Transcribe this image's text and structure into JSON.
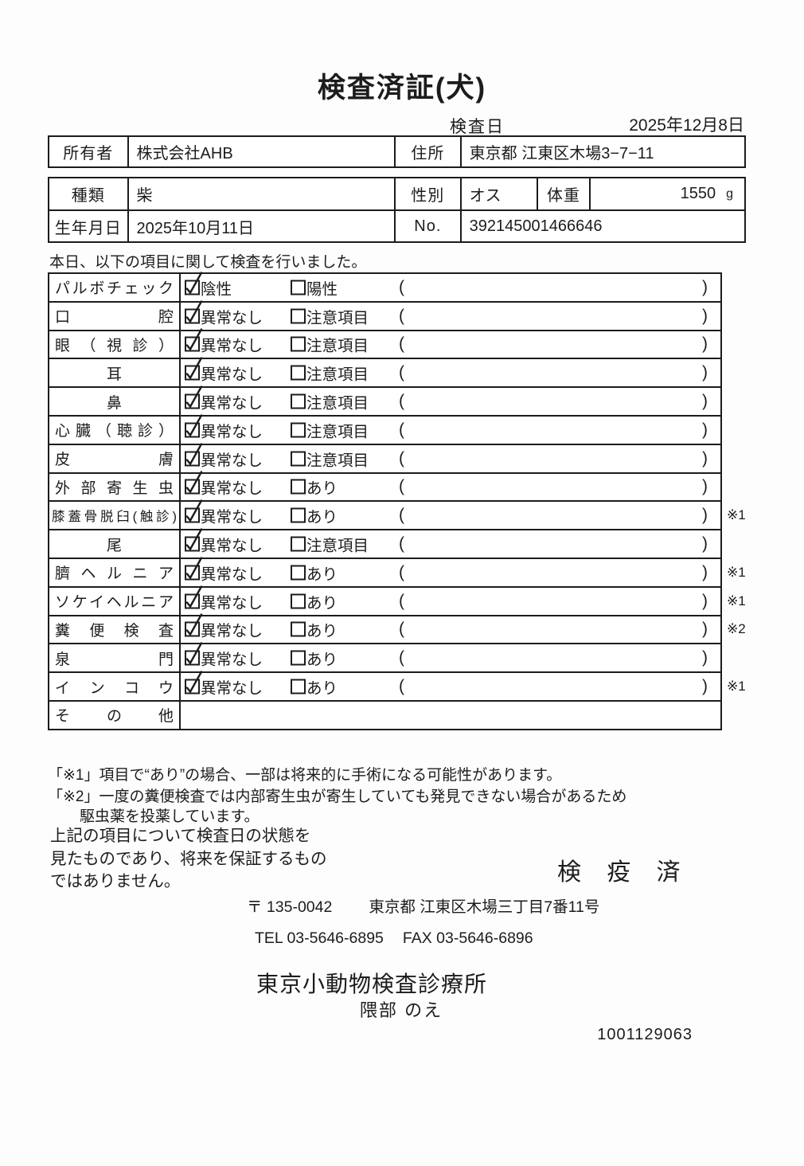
{
  "title": "検査済証(犬)",
  "exam_date": {
    "label": "検査日",
    "value": "2025年12月8日"
  },
  "owner": {
    "label": "所有者",
    "value": "株式会社AHB",
    "address_label": "住所",
    "address": "東京都 江東区木場3−7−11"
  },
  "animal": {
    "breed_label": "種類",
    "breed": "柴",
    "sex_label": "性別",
    "sex": "オス",
    "weight_label": "体重",
    "weight": "1550",
    "weight_unit": "g",
    "birth_label": "生年月日",
    "birth": "2025年10月11日",
    "no_label": "No.",
    "no": "392145001466646"
  },
  "intro": "本日、以下の項目に関して検査を行いました。",
  "parens": {
    "open": "(",
    "close": ")"
  },
  "rows": [
    {
      "label": "パルボチェック",
      "align": "justify",
      "opt1": "陰性",
      "checked1": true,
      "opt2": "陽性",
      "checked2": false,
      "note": "",
      "has_options": true
    },
    {
      "label": "口腔",
      "align": "justify",
      "opt1": "異常なし",
      "checked1": true,
      "opt2": "注意項目",
      "checked2": false,
      "note": "",
      "has_options": true
    },
    {
      "label": "眼（視診）",
      "align": "justify",
      "opt1": "異常なし",
      "checked1": true,
      "opt2": "注意項目",
      "checked2": false,
      "note": "",
      "has_options": true
    },
    {
      "label": "耳",
      "align": "center",
      "opt1": "異常なし",
      "checked1": true,
      "opt2": "注意項目",
      "checked2": false,
      "note": "",
      "has_options": true
    },
    {
      "label": "鼻",
      "align": "center",
      "opt1": "異常なし",
      "checked1": true,
      "opt2": "注意項目",
      "checked2": false,
      "note": "",
      "has_options": true
    },
    {
      "label": "心臓（聴診）",
      "align": "justify",
      "opt1": "異常なし",
      "checked1": true,
      "opt2": "注意項目",
      "checked2": false,
      "note": "",
      "has_options": true
    },
    {
      "label": "皮膚",
      "align": "justify",
      "opt1": "異常なし",
      "checked1": true,
      "opt2": "注意項目",
      "checked2": false,
      "note": "",
      "has_options": true
    },
    {
      "label": "外部寄生虫",
      "align": "justify",
      "opt1": "異常なし",
      "checked1": true,
      "opt2": "あり",
      "checked2": false,
      "note": "",
      "has_options": true
    },
    {
      "label": "膝蓋骨脱臼(触診)",
      "align": "justify",
      "compact": true,
      "opt1": "異常なし",
      "checked1": true,
      "opt2": "あり",
      "checked2": false,
      "note": "※1",
      "has_options": true
    },
    {
      "label": "尾",
      "align": "center",
      "opt1": "異常なし",
      "checked1": true,
      "opt2": "注意項目",
      "checked2": false,
      "note": "",
      "has_options": true
    },
    {
      "label": "臍ヘルニア",
      "align": "justify",
      "opt1": "異常なし",
      "checked1": true,
      "opt2": "あり",
      "checked2": false,
      "note": "※1",
      "has_options": true
    },
    {
      "label": "ソケイヘルニア",
      "align": "justify",
      "opt1": "異常なし",
      "checked1": true,
      "opt2": "あり",
      "checked2": false,
      "note": "※1",
      "has_options": true
    },
    {
      "label": "糞便検査",
      "align": "justify",
      "opt1": "異常なし",
      "checked1": true,
      "opt2": "あり",
      "checked2": false,
      "note": "※2",
      "has_options": true
    },
    {
      "label": "泉門",
      "align": "justify",
      "opt1": "異常なし",
      "checked1": true,
      "opt2": "あり",
      "checked2": false,
      "note": "",
      "has_options": true
    },
    {
      "label": "インコウ",
      "align": "justify",
      "opt1": "異常なし",
      "checked1": true,
      "opt2": "あり",
      "checked2": false,
      "note": "※1",
      "has_options": true
    },
    {
      "label": "その他",
      "align": "justify",
      "opt1": "",
      "checked1": false,
      "opt2": "",
      "checked2": false,
      "note": "",
      "has_options": false
    }
  ],
  "footnotes": {
    "line1": "「※1」項目で“あり”の場合、一部は将来的に手術になる可能性があります。",
    "line2": "「※2」一度の糞便検査では内部寄生虫が寄生していても発見できない場合があるため",
    "line3": "駆虫薬を投薬しています。"
  },
  "disclaimer": {
    "line1": "上記の項目について検査日の状態を",
    "line2": "見たものであり、将来を保証するもの",
    "line3": "ではありません。"
  },
  "stamp": "検 疫 済",
  "clinic": {
    "postal": "〒 135-0042",
    "address": "東京都 江東区木場三丁目7番11号",
    "tel": "TEL 03-5646-6895",
    "fax": "FAX 03-5646-6896",
    "name": "東京小動物検査診療所",
    "vet": "隈部 のえ"
  },
  "doc_number": "1001129063"
}
